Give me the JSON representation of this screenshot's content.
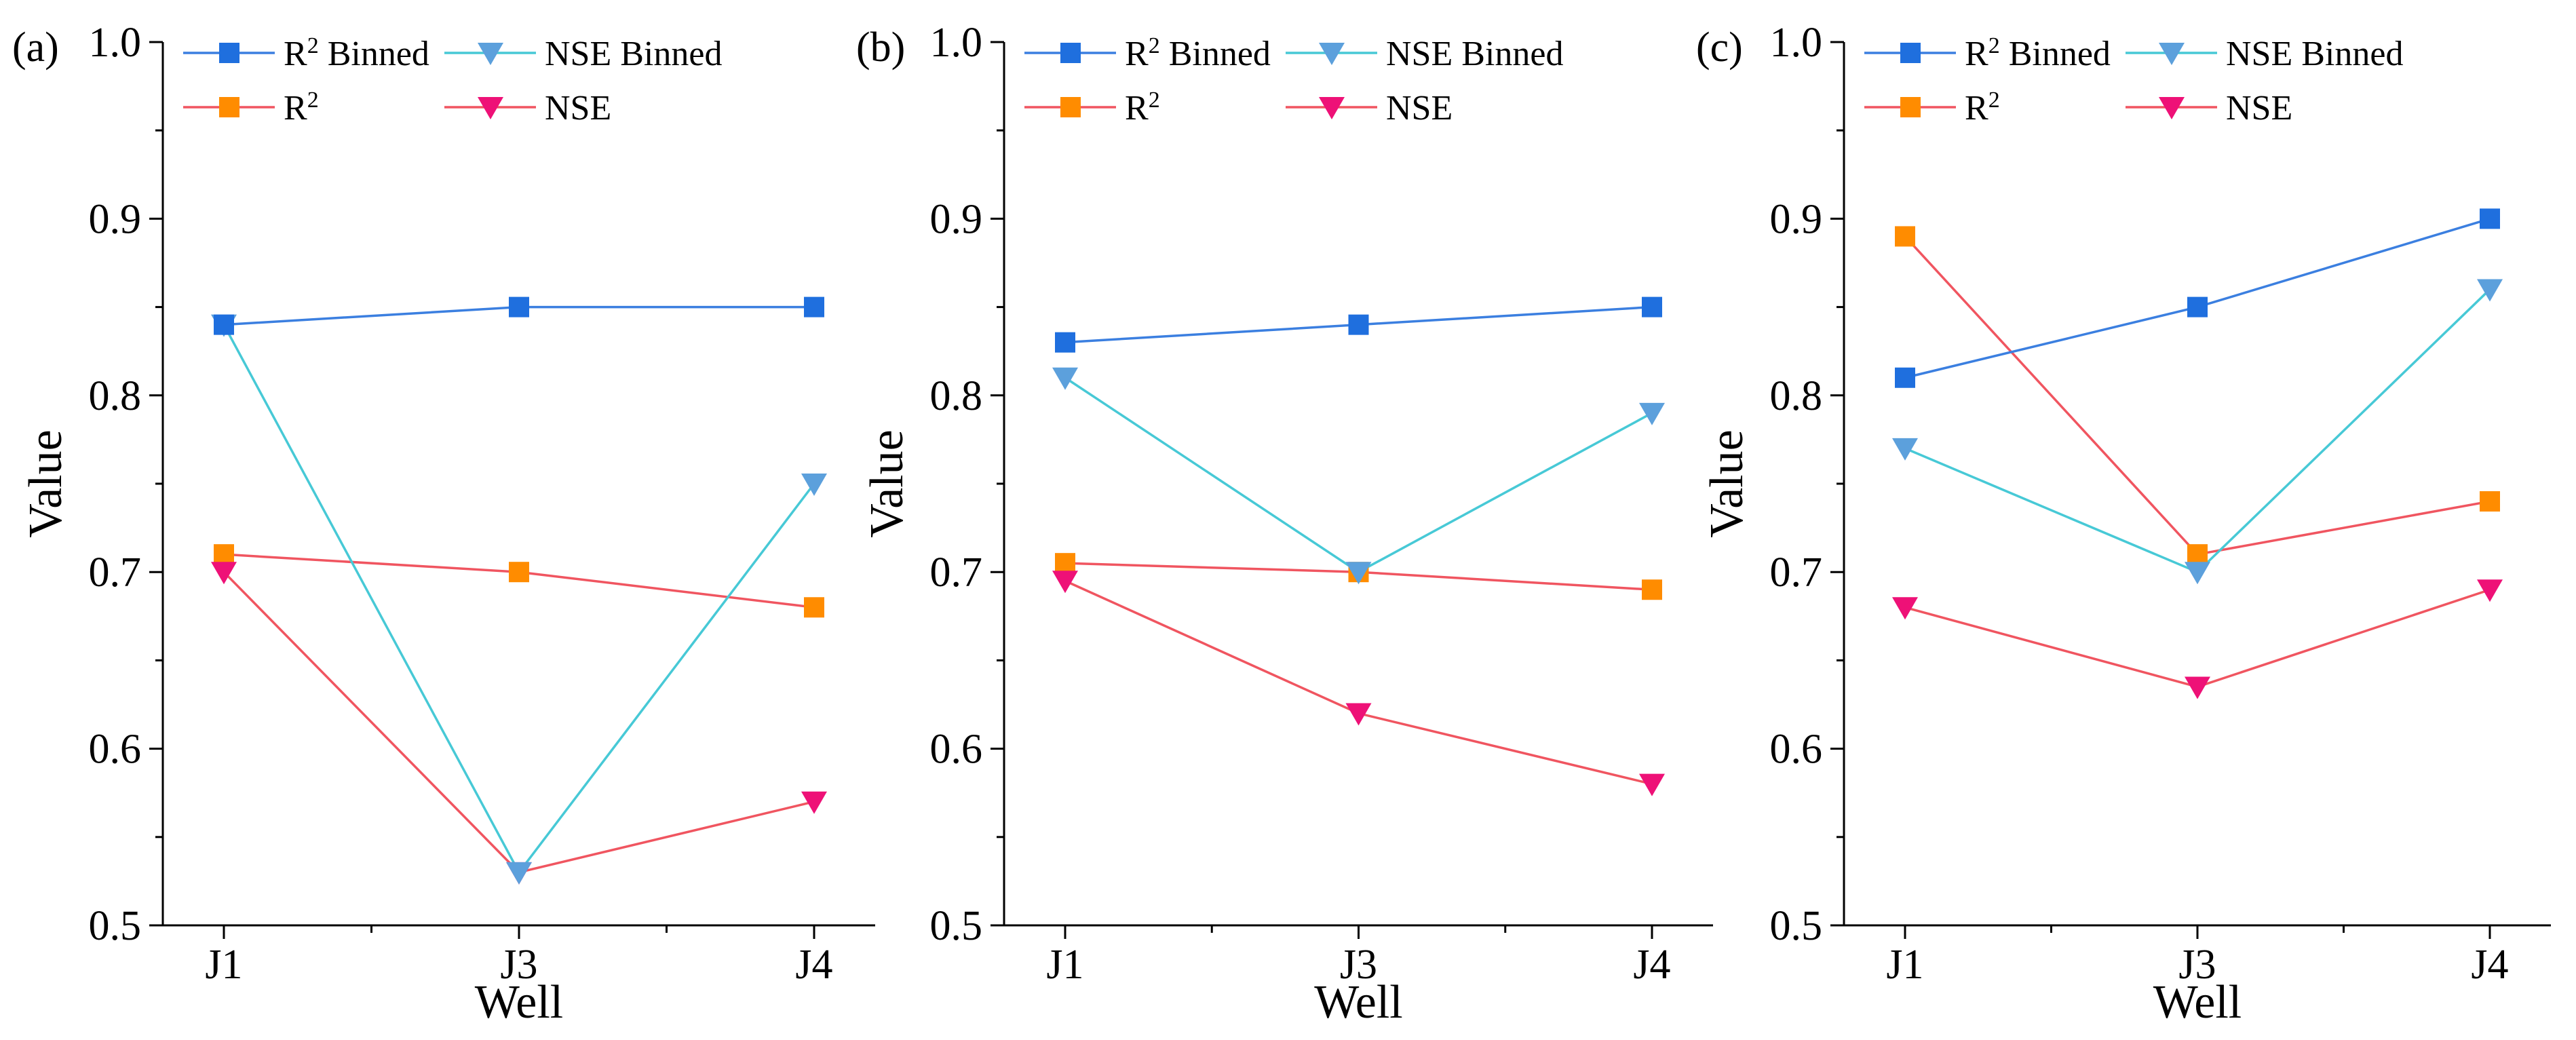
{
  "chart_data": [
    {
      "panel": "(a)",
      "type": "line",
      "categories": [
        "J1",
        "J3",
        "J4"
      ],
      "xlabel": "Well",
      "ylabel": "Value",
      "ylim": [
        0.5,
        1.0
      ],
      "yticks": [
        "0.5",
        "0.6",
        "0.7",
        "0.8",
        "0.9",
        "1.0"
      ],
      "series": [
        {
          "name": "R² Binned",
          "values": [
            0.84,
            0.85,
            0.85
          ],
          "color": "#1f6fde",
          "marker": "square",
          "line_color": "#3b7fe0"
        },
        {
          "name": "NSE Binned",
          "values": [
            0.84,
            0.53,
            0.75
          ],
          "color": "#5ca0dc",
          "marker": "triangle-down",
          "line_color": "#47c9d6"
        },
        {
          "name": "R²",
          "values": [
            0.71,
            0.7,
            0.68
          ],
          "color": "#ff8c00",
          "marker": "square",
          "line_color": "#f05560"
        },
        {
          "name": "NSE",
          "values": [
            0.7,
            0.53,
            0.57
          ],
          "color": "#ee1177",
          "marker": "triangle-down",
          "line_color": "#f05560"
        }
      ]
    },
    {
      "panel": "(b)",
      "type": "line",
      "categories": [
        "J1",
        "J3",
        "J4"
      ],
      "xlabel": "Well",
      "ylabel": "Value",
      "ylim": [
        0.5,
        1.0
      ],
      "yticks": [
        "0.5",
        "0.6",
        "0.7",
        "0.8",
        "0.9",
        "1.0"
      ],
      "series": [
        {
          "name": "R² Binned",
          "values": [
            0.83,
            0.84,
            0.85
          ],
          "color": "#1f6fde",
          "marker": "square",
          "line_color": "#3b7fe0"
        },
        {
          "name": "NSE Binned",
          "values": [
            0.81,
            0.7,
            0.79
          ],
          "color": "#5ca0dc",
          "marker": "triangle-down",
          "line_color": "#47c9d6"
        },
        {
          "name": "R²",
          "values": [
            0.705,
            0.7,
            0.69
          ],
          "color": "#ff8c00",
          "marker": "square",
          "line_color": "#f05560"
        },
        {
          "name": "NSE",
          "values": [
            0.695,
            0.62,
            0.58
          ],
          "color": "#ee1177",
          "marker": "triangle-down",
          "line_color": "#f05560"
        }
      ]
    },
    {
      "panel": "(c)",
      "type": "line",
      "categories": [
        "J1",
        "J3",
        "J4"
      ],
      "xlabel": "Well",
      "ylabel": "Value",
      "ylim": [
        0.5,
        1.0
      ],
      "yticks": [
        "0.5",
        "0.6",
        "0.7",
        "0.8",
        "0.9",
        "1.0"
      ],
      "series": [
        {
          "name": "R² Binned",
          "values": [
            0.81,
            0.85,
            0.9
          ],
          "color": "#1f6fde",
          "marker": "square",
          "line_color": "#3b7fe0"
        },
        {
          "name": "NSE Binned",
          "values": [
            0.77,
            0.7,
            0.86
          ],
          "color": "#5ca0dc",
          "marker": "triangle-down",
          "line_color": "#47c9d6"
        },
        {
          "name": "R²",
          "values": [
            0.89,
            0.71,
            0.74
          ],
          "color": "#ff8c00",
          "marker": "square",
          "line_color": "#f05560"
        },
        {
          "name": "NSE",
          "values": [
            0.68,
            0.635,
            0.69
          ],
          "color": "#ee1177",
          "marker": "triangle-down",
          "line_color": "#f05560"
        }
      ]
    }
  ]
}
